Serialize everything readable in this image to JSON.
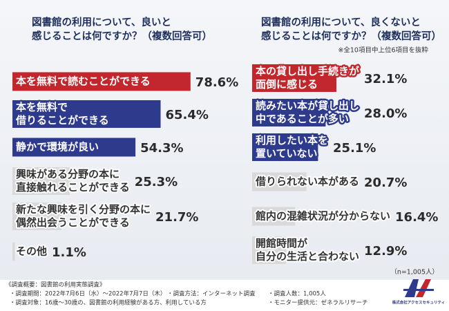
{
  "chart_data": [
    {
      "type": "bar",
      "title": [
        "図書館の利用について、良いと",
        "感じることは何ですか？（複数回答可）"
      ],
      "categories": [
        [
          "本を無料で読むことができる"
        ],
        [
          "本を無料で",
          "借りることができる"
        ],
        [
          "静かで環境が良い"
        ],
        [
          "興味がある分野の本に",
          "直接触れることができる"
        ],
        [
          "新たな興味を引く分野の本に",
          "偶然出会うことができる"
        ],
        [
          "その他"
        ]
      ],
      "values": [
        78.6,
        65.4,
        54.3,
        25.3,
        21.7,
        1.1
      ],
      "value_labels": [
        "78.6%",
        "65.4%",
        "54.3%",
        "25.3%",
        "21.7%",
        "1.1%"
      ],
      "colors": [
        "#c1272d",
        "#2e3a8c",
        "#2e3a8c",
        "#d9d9d9",
        "#d9d9d9",
        "#d9d9d9"
      ]
    },
    {
      "type": "bar",
      "title": [
        "図書館の利用について、良くないと",
        "感じることは何ですか？（複数回答可）"
      ],
      "note": "※全10項目中上位6項目を抜粋",
      "categories": [
        [
          "本の貸し出し手続きが",
          "面倒に感じる"
        ],
        [
          "読みたい本が貸し出し",
          "中であることが多い"
        ],
        [
          "利用したい本を",
          "置いていない"
        ],
        [
          "借りられない本がある"
        ],
        [
          "館内の混雑状況が分からない"
        ],
        [
          "開館時間が",
          "自分の生活と合わない"
        ]
      ],
      "values": [
        32.1,
        28.0,
        25.1,
        20.7,
        16.4,
        12.9
      ],
      "value_labels": [
        "32.1%",
        "28.0%",
        "25.1%",
        "20.7%",
        "16.4%",
        "12.9%"
      ],
      "colors": [
        "#c1272d",
        "#2e3a8c",
        "#2e3a8c",
        "#d9d9d9",
        "#d9d9d9",
        "#d9d9d9"
      ],
      "sample_note": "（n=1,005人）"
    }
  ],
  "footer": {
    "heading": "《調査概要：図書館の利用実態調査》",
    "items": [
      "・調査期間：2022年7月6日（水）～2022年7月7日（木）",
      "・調査方法：インターネット調査",
      "・調査人数：1,005人",
      "・調査対象：16歳～30歳の、図書館の利用経験がある方、利用している方",
      "・モニター提供元：ゼネラルリサーチ"
    ],
    "company": "株式会社アクセスセキュリティ"
  }
}
